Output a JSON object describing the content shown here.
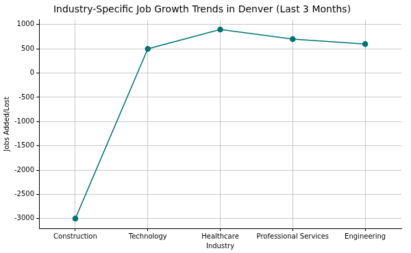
{
  "chart_data": {
    "type": "line",
    "title": "Industry-Specific Job Growth Trends in Denver (Last 3 Months)",
    "x_label": "Industry",
    "y_label": "Jobs Added/Lost",
    "categories": [
      "Construction",
      "Technology",
      "Healthcare",
      "Professional Services",
      "Engineering"
    ],
    "values": [
      -3000,
      500,
      900,
      700,
      600
    ],
    "color": "#007272",
    "marker": "circle",
    "ylim": [
      -3200,
      1100
    ],
    "yticks": [
      -3000,
      -2500,
      -2000,
      -1500,
      -1000,
      -500,
      0,
      500,
      1000
    ],
    "grid": true
  }
}
